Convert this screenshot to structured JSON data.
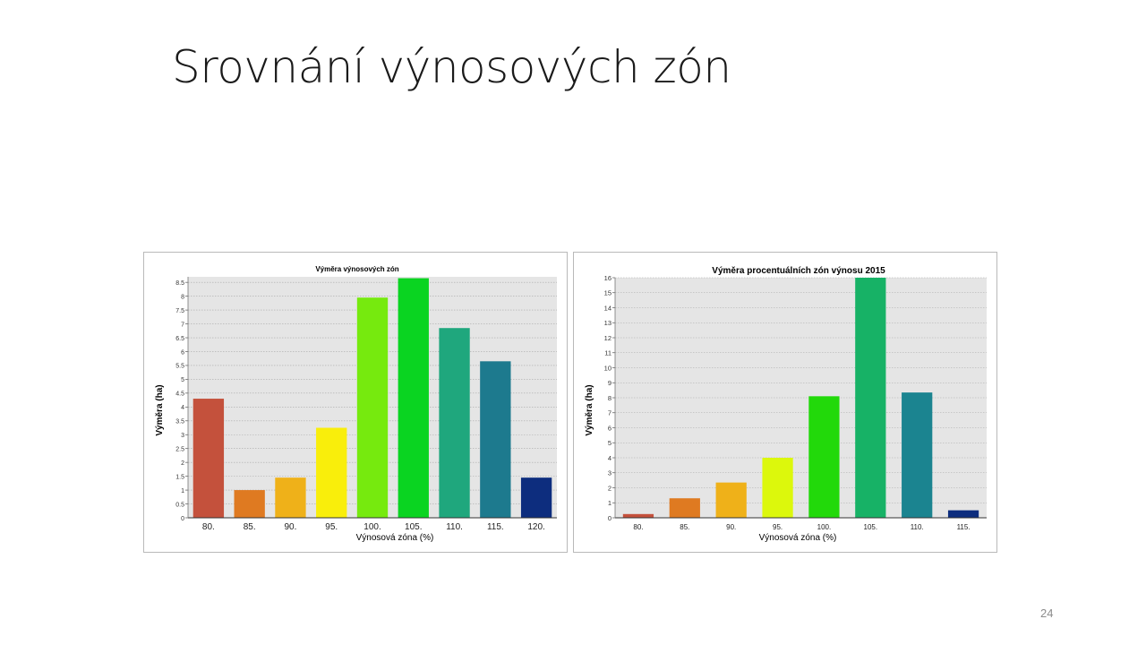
{
  "slide": {
    "title": "Srovnání výnosových zón",
    "page_number": "24"
  },
  "chart_data": [
    {
      "type": "bar",
      "title": "Výměra výnosových zón",
      "xlabel": "Výnosová zóna (%)",
      "ylabel": "Výměra (ha)",
      "ylim": [
        0,
        8.7
      ],
      "ytick_step": 0.5,
      "grid": true,
      "categories": [
        "80.",
        "85.",
        "90.",
        "95.",
        "100.",
        "105.",
        "110.",
        "115.",
        "120."
      ],
      "values": [
        4.3,
        1.0,
        1.45,
        3.25,
        7.95,
        8.65,
        6.85,
        5.65,
        1.45
      ],
      "colors": [
        "#c4513c",
        "#df7a21",
        "#efb119",
        "#f9ee0b",
        "#76ea0e",
        "#0ad421",
        "#1fa77d",
        "#1d7a8e",
        "#0d2d7e"
      ]
    },
    {
      "type": "bar",
      "title": "Výměra procentuálních zón výnosu 2015",
      "xlabel": "Výnosová zóna (%)",
      "ylabel": "Výměra (ha)",
      "ylim": [
        0,
        16
      ],
      "ytick_step": 1,
      "grid": true,
      "categories": [
        "80.",
        "85.",
        "90.",
        "95.",
        "100.",
        "105.",
        "110.",
        "115."
      ],
      "values": [
        0.25,
        1.3,
        2.35,
        4.0,
        8.1,
        16.0,
        8.35,
        0.5
      ],
      "colors": [
        "#c4513c",
        "#df7a21",
        "#efb119",
        "#dcf80c",
        "#22d90a",
        "#17b266",
        "#1b8490",
        "#0d2d7e"
      ]
    }
  ]
}
